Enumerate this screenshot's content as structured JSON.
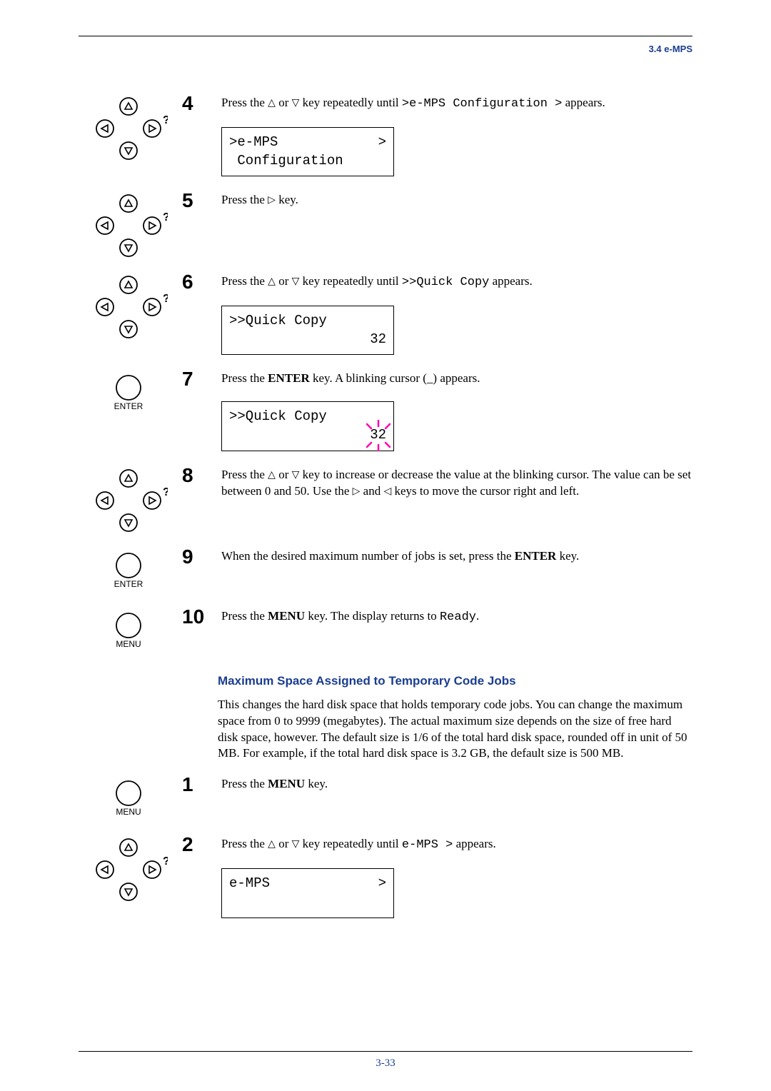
{
  "header": {
    "label": "3.4 e-MPS"
  },
  "colors": {
    "accent": "#1a3d8f",
    "sparkle": "#ff00b3"
  },
  "glyph": {
    "up": "△",
    "down": "▽",
    "right": "▷",
    "left": "◁"
  },
  "steps": [
    {
      "num": "4",
      "icon": "arrowpad",
      "text_parts": [
        "Press the ",
        "UP",
        " or ",
        "DOWN",
        " key repeatedly until ",
        ">e-MPS Configuration >",
        " appears."
      ],
      "lcd": {
        "line1_left": ">e-MPS",
        "line1_right": ">",
        "line2": " Configuration"
      }
    },
    {
      "num": "5",
      "icon": "arrowpad",
      "text_parts": [
        "Press the ",
        "RIGHT",
        " key."
      ]
    },
    {
      "num": "6",
      "icon": "arrowpad",
      "text_parts": [
        "Press the ",
        "UP",
        " or ",
        "DOWN",
        " key repeatedly until ",
        ">>Quick Copy",
        " appears."
      ],
      "lcd": {
        "line1_left": ">>Quick Copy",
        "line2_right": "32"
      }
    },
    {
      "num": "7",
      "icon": "enter",
      "text_parts": [
        "Press the ",
        "ENTER",
        " key. A blinking cursor (_) appears."
      ],
      "lcd": {
        "line1_left": ">>Quick Copy",
        "line2_right_sparkle": "32"
      }
    },
    {
      "num": "8",
      "icon": "arrowpad",
      "text_parts": [
        "Press the ",
        "UP",
        " or ",
        "DOWN",
        " key to increase or decrease the value at the blinking cursor. The value can be set between 0 and 50. Use the ",
        "RIGHT",
        " and ",
        "LEFT",
        " keys to move the cursor right and left."
      ]
    },
    {
      "num": "9",
      "icon": "enter",
      "text_parts": [
        "When the desired maximum number of jobs is set, press the ",
        "ENTER",
        " key."
      ]
    },
    {
      "num": "10",
      "icon": "menu",
      "text_parts": [
        "Press the ",
        "MENU",
        " key. The display returns to ",
        "Ready",
        "."
      ]
    }
  ],
  "section": {
    "heading": "Maximum Space Assigned to Temporary Code Jobs",
    "para": "This changes the hard disk space that holds temporary code jobs. You can change the maximum space from 0 to 9999 (megabytes). The actual maximum size depends on the size of free hard disk space, however. The default size is 1/6 of the total hard disk space, rounded off in unit of 50 MB. For example, if the total hard disk space is 3.2 GB, the default size is 500 MB."
  },
  "steps2": [
    {
      "num": "1",
      "icon": "menu",
      "text_parts": [
        "Press the ",
        "MENU",
        " key."
      ]
    },
    {
      "num": "2",
      "icon": "arrowpad",
      "text_parts": [
        "Press the ",
        "UP",
        " or ",
        "DOWN",
        " key repeatedly until ",
        "e-MPS >",
        " appears."
      ],
      "lcd": {
        "line1_left": "e-MPS",
        "line1_right": ">",
        "line2": " "
      }
    }
  ],
  "footer": {
    "pagenum": "3-33"
  },
  "labels": {
    "enter": "ENTER",
    "menu": "MENU"
  }
}
